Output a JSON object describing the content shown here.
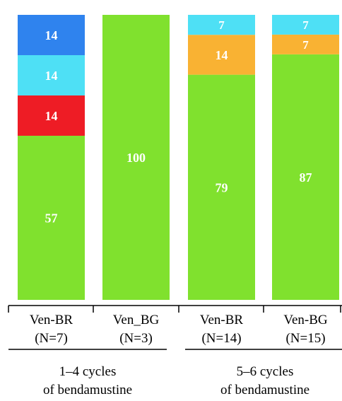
{
  "chart_data": {
    "type": "bar",
    "stacked": true,
    "ylim": [
      0,
      100
    ],
    "categories": [
      {
        "name": "Ven-BR",
        "n": "(N=7)",
        "group": 0
      },
      {
        "name": "Ven_BG",
        "n": "(N=3)",
        "group": 0
      },
      {
        "name": "Ven-BR",
        "n": "(N=14)",
        "group": 1
      },
      {
        "name": "Ven-BG",
        "n": "(N=15)",
        "group": 1
      }
    ],
    "groups": [
      {
        "line1": "1–4 cycles",
        "line2": "of bendamustine"
      },
      {
        "line1": "5–6 cycles",
        "line2": "of bendamustine"
      }
    ],
    "series_colors": [
      "#80e12e",
      "#ee1c25",
      "#f9b233",
      "#4ee0f5",
      "#2f83ee"
    ],
    "bars": [
      {
        "segments": [
          {
            "value": 57,
            "label": "57",
            "color": "#80e12e"
          },
          {
            "value": 14,
            "label": "14",
            "color": "#ee1c25"
          },
          {
            "value": 14,
            "label": "14",
            "color": "#4ee0f5"
          },
          {
            "value": 14,
            "label": "14",
            "color": "#2f83ee"
          }
        ]
      },
      {
        "segments": [
          {
            "value": 100,
            "label": "100",
            "color": "#80e12e"
          }
        ]
      },
      {
        "segments": [
          {
            "value": 79,
            "label": "79",
            "color": "#80e12e"
          },
          {
            "value": 14,
            "label": "14",
            "color": "#f9b233"
          },
          {
            "value": 7,
            "label": "7",
            "color": "#4ee0f5"
          }
        ]
      },
      {
        "segments": [
          {
            "value": 87,
            "label": "87",
            "color": "#80e12e"
          },
          {
            "value": 7,
            "label": "7",
            "color": "#f9b233"
          },
          {
            "value": 7,
            "label": "7",
            "color": "#4ee0f5"
          }
        ]
      }
    ]
  }
}
